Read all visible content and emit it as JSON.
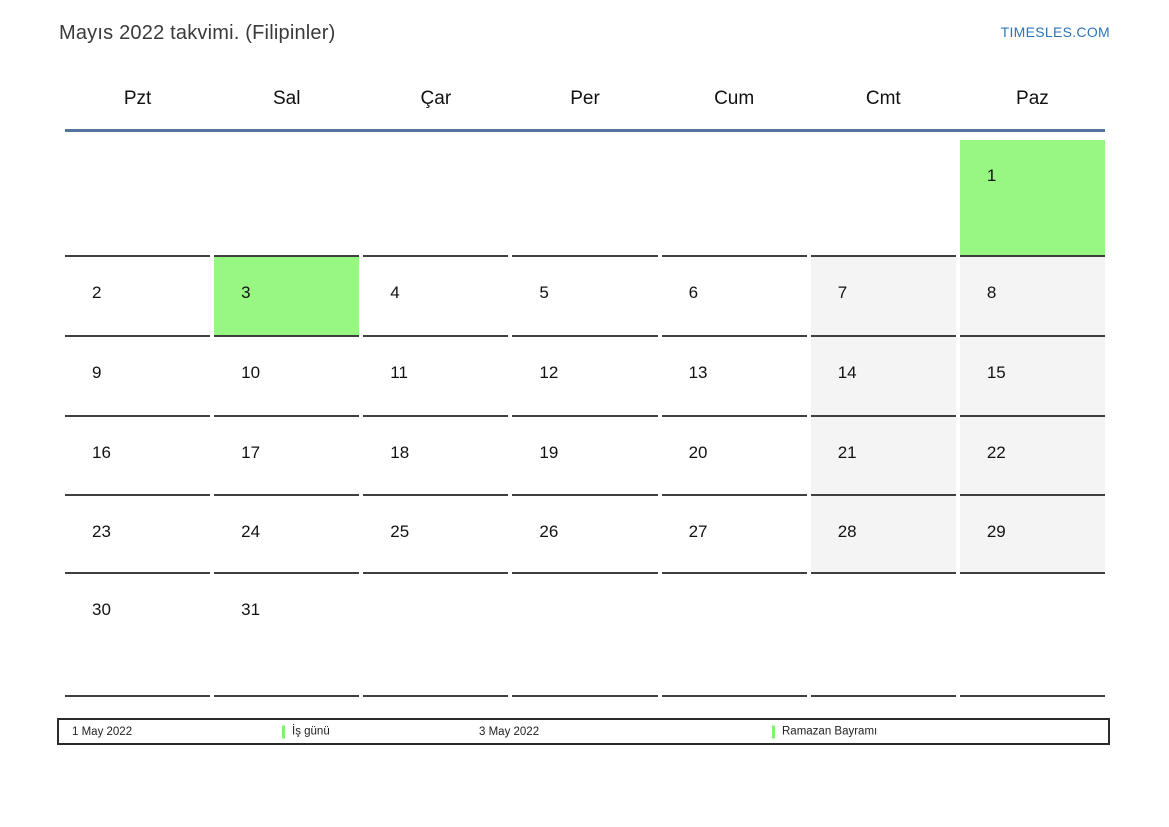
{
  "page": {
    "title": "Mayıs 2022 takvimi. (Filipinler)",
    "brand": "TIMESLES.COM"
  },
  "weekdays": [
    "Pzt",
    "Sal",
    "Çar",
    "Per",
    "Cum",
    "Cmt",
    "Paz"
  ],
  "calendar": {
    "weeks": [
      {
        "days": [
          {
            "text": "",
            "type": "empty"
          },
          {
            "text": "",
            "type": "empty"
          },
          {
            "text": "",
            "type": "empty"
          },
          {
            "text": "",
            "type": "empty"
          },
          {
            "text": "",
            "type": "empty"
          },
          {
            "text": "",
            "type": "empty"
          },
          {
            "text": "1",
            "type": "holiday"
          }
        ]
      },
      {
        "days": [
          {
            "text": "2",
            "type": "day"
          },
          {
            "text": "3",
            "type": "holiday"
          },
          {
            "text": "4",
            "type": "day"
          },
          {
            "text": "5",
            "type": "day"
          },
          {
            "text": "6",
            "type": "day"
          },
          {
            "text": "7",
            "type": "weekend"
          },
          {
            "text": "8",
            "type": "weekend"
          }
        ]
      },
      {
        "days": [
          {
            "text": "9",
            "type": "day"
          },
          {
            "text": "10",
            "type": "day"
          },
          {
            "text": "11",
            "type": "day"
          },
          {
            "text": "12",
            "type": "day"
          },
          {
            "text": "13",
            "type": "day"
          },
          {
            "text": "14",
            "type": "weekend"
          },
          {
            "text": "15",
            "type": "weekend"
          }
        ]
      },
      {
        "days": [
          {
            "text": "16",
            "type": "day"
          },
          {
            "text": "17",
            "type": "day"
          },
          {
            "text": "18",
            "type": "day"
          },
          {
            "text": "19",
            "type": "day"
          },
          {
            "text": "20",
            "type": "day"
          },
          {
            "text": "21",
            "type": "weekend"
          },
          {
            "text": "22",
            "type": "weekend"
          }
        ]
      },
      {
        "days": [
          {
            "text": "23",
            "type": "day"
          },
          {
            "text": "24",
            "type": "day"
          },
          {
            "text": "25",
            "type": "day"
          },
          {
            "text": "26",
            "type": "day"
          },
          {
            "text": "27",
            "type": "day"
          },
          {
            "text": "28",
            "type": "weekend"
          },
          {
            "text": "29",
            "type": "weekend"
          }
        ]
      },
      {
        "days": [
          {
            "text": "30",
            "type": "day"
          },
          {
            "text": "31",
            "type": "day"
          },
          {
            "text": "",
            "type": "empty"
          },
          {
            "text": "",
            "type": "empty"
          },
          {
            "text": "",
            "type": "empty"
          },
          {
            "text": "",
            "type": "empty"
          },
          {
            "text": "",
            "type": "empty"
          }
        ]
      }
    ]
  },
  "legend": {
    "date1": "1 May 2022",
    "entry1": "İş günü",
    "date2": "3 May 2022",
    "entry2": "Ramazan Bayramı"
  },
  "colors": {
    "holiday": "#98f783",
    "weekend": "#f4f4f4",
    "separator": "#54749e",
    "brand": "#2e75b6",
    "marker": "#80f36f",
    "cell_border": "#3f3f3f"
  }
}
